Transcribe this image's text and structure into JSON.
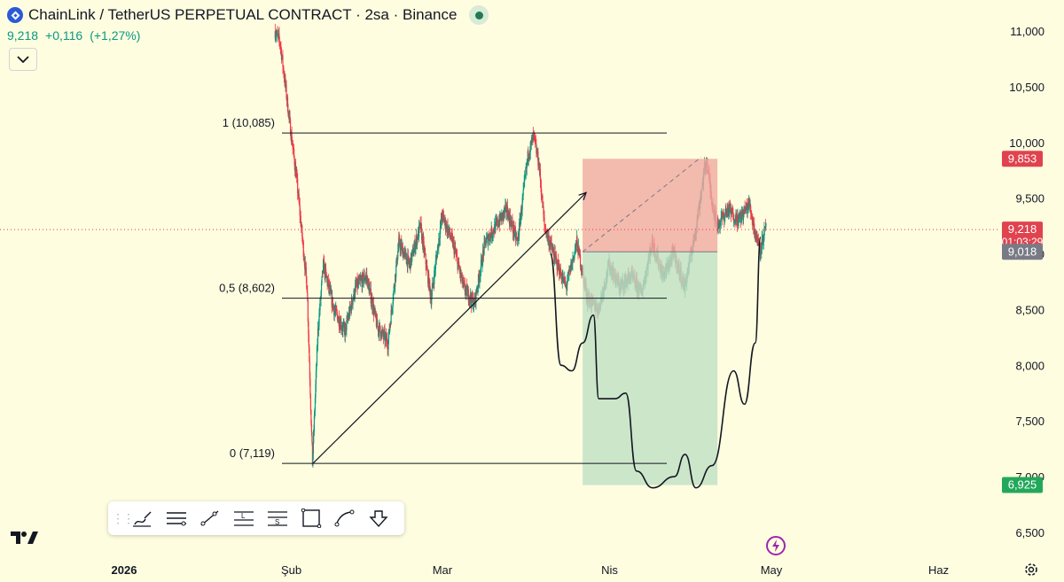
{
  "header": {
    "title": "ChainLink / TetherUS PERPETUAL CONTRACT · 2sa · Binance",
    "price": "9,218",
    "change": "+0,116",
    "change_pct": "(+1,27%)"
  },
  "toolbar": {
    "tools": [
      "brush-icon",
      "horizontal-lines-icon",
      "trend-line-icon",
      "long-position-icon",
      "short-position-icon",
      "rectangle-icon",
      "curve-icon",
      "arrow-down-icon"
    ]
  },
  "colors": {
    "background": "#fefde0",
    "up": "#089981",
    "down": "#f23645",
    "stop_zone": "#f0a9a1",
    "target_zone": "#bfe0c4"
  },
  "chart_data": {
    "type": "candlestick",
    "x_axis": {
      "ticks": [
        "2026",
        "Şub",
        "Mar",
        "Nis",
        "May",
        "Haz"
      ],
      "range": [
        "2026-01-01",
        "2026-06-08"
      ]
    },
    "y_axis": {
      "range": [
        6300,
        11150
      ],
      "ticks": [
        "6,500",
        "7,000",
        "7,500",
        "8,000",
        "8,500",
        "9,000",
        "9,500",
        "10,000",
        "10,500",
        "11,000"
      ]
    },
    "series": {
      "interval": "2h",
      "approx_path": [
        [
          "2026-01-29",
          11000
        ],
        [
          "2026-01-30",
          10900
        ],
        [
          "2026-01-31",
          10500
        ],
        [
          "2026-02-01",
          10085
        ],
        [
          "2026-02-02",
          9700
        ],
        [
          "2026-02-03",
          9200
        ],
        [
          "2026-02-04",
          8700
        ],
        [
          "2026-02-05",
          7119
        ],
        [
          "2026-02-06",
          8300
        ],
        [
          "2026-02-07",
          8900
        ],
        [
          "2026-02-09",
          8500
        ],
        [
          "2026-02-11",
          8300
        ],
        [
          "2026-02-13",
          8700
        ],
        [
          "2026-02-15",
          8800
        ],
        [
          "2026-02-17",
          8350
        ],
        [
          "2026-02-19",
          8200
        ],
        [
          "2026-02-21",
          9100
        ],
        [
          "2026-02-23",
          8900
        ],
        [
          "2026-02-25",
          9250
        ],
        [
          "2026-02-27",
          8600
        ],
        [
          "2026-03-01",
          9350
        ],
        [
          "2026-03-03",
          9100
        ],
        [
          "2026-03-05",
          8700
        ],
        [
          "2026-03-07",
          8550
        ],
        [
          "2026-03-09",
          9100
        ],
        [
          "2026-03-11",
          9250
        ],
        [
          "2026-03-13",
          9400
        ],
        [
          "2026-03-15",
          9100
        ],
        [
          "2026-03-17",
          9900
        ],
        [
          "2026-03-18",
          10050
        ],
        [
          "2026-03-19",
          9800
        ],
        [
          "2026-03-20",
          9250
        ],
        [
          "2026-03-22",
          8950
        ],
        [
          "2026-03-24",
          8700
        ],
        [
          "2026-03-26",
          9100
        ],
        [
          "2026-03-28",
          8600
        ],
        [
          "2026-03-30",
          8500
        ],
        [
          "2026-04-01",
          8900
        ],
        [
          "2026-04-03",
          8700
        ],
        [
          "2026-04-05",
          8800
        ],
        [
          "2026-04-07",
          8650
        ],
        [
          "2026-04-09",
          9100
        ],
        [
          "2026-04-11",
          8800
        ],
        [
          "2026-04-13",
          9000
        ],
        [
          "2026-04-15",
          8700
        ],
        [
          "2026-04-17",
          9200
        ],
        [
          "2026-04-19",
          9853
        ],
        [
          "2026-04-20",
          9500
        ],
        [
          "2026-04-21",
          9250
        ],
        [
          "2026-04-23",
          9400
        ],
        [
          "2026-04-25",
          9300
        ],
        [
          "2026-04-27",
          9450
        ],
        [
          "2026-04-28",
          9200
        ],
        [
          "2026-04-29",
          9050
        ],
        [
          "2026-04-30",
          9218
        ]
      ]
    },
    "last_price": {
      "value": 9218,
      "label": "9,218",
      "countdown": "01:03:29"
    },
    "fib_levels": [
      {
        "label": "1 (10,085)",
        "value": 10085
      },
      {
        "label": "0,5 (8,602)",
        "value": 8602
      },
      {
        "label": "0 (7,119)",
        "value": 7119
      }
    ],
    "position": {
      "type": "short",
      "entry": 9018,
      "entry_label": "9,018",
      "stop": 9853,
      "stop_label": "9,853",
      "target": 6925,
      "target_label": "6,925",
      "start": "2026-03-27",
      "end": "2026-04-21"
    },
    "trend_line": {
      "from": [
        "2026-02-05",
        7119
      ],
      "to": [
        "2026-03-27",
        9550
      ]
    },
    "projection_path": [
      [
        "2026-03-21",
        9000
      ],
      [
        "2026-03-23",
        8000
      ],
      [
        "2026-03-25",
        7950
      ],
      [
        "2026-03-27",
        8200
      ],
      [
        "2026-03-29",
        8450
      ],
      [
        "2026-03-30",
        7700
      ],
      [
        "2026-04-02",
        7700
      ],
      [
        "2026-04-04",
        7750
      ],
      [
        "2026-04-06",
        7050
      ],
      [
        "2026-04-09",
        6900
      ],
      [
        "2026-04-13",
        7000
      ],
      [
        "2026-04-15",
        7200
      ],
      [
        "2026-04-17",
        6900
      ],
      [
        "2026-04-20",
        7100
      ],
      [
        "2026-04-24",
        7950
      ],
      [
        "2026-04-26",
        7650
      ],
      [
        "2026-04-28",
        8200
      ],
      [
        "2026-04-29",
        9150
      ]
    ]
  }
}
